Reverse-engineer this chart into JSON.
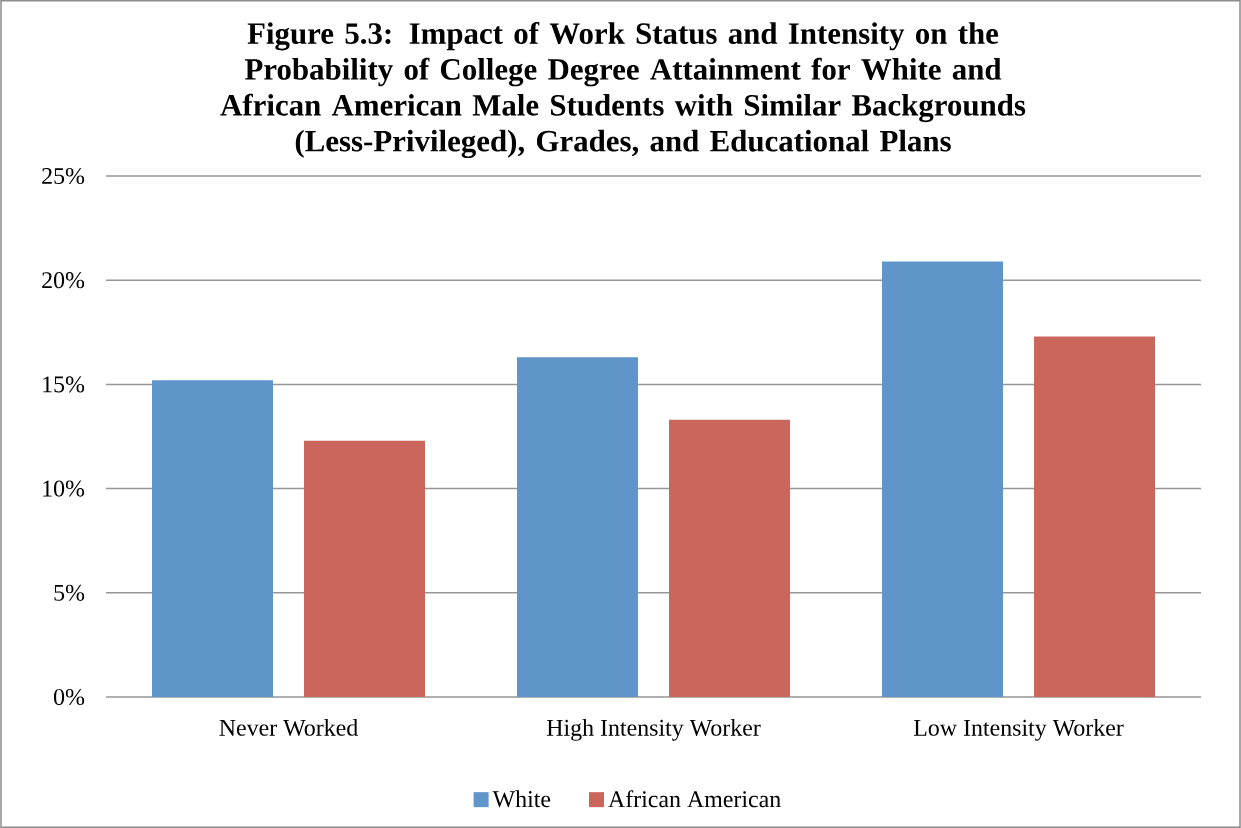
{
  "chart_data": {
    "type": "bar",
    "title": "Figure 5.3: Impact of Work Status and Intensity on the Probability of College Degree Attainment for White and African American Male Students with Similar Backgrounds (Less-Privileged), Grades, and Educational Plans",
    "categories": [
      "Never Worked",
      "High Intensity Worker",
      "Low Intensity Worker"
    ],
    "series": [
      {
        "name": "White",
        "color": "#5f95c9",
        "values": [
          15.2,
          16.3,
          20.9
        ]
      },
      {
        "name": "African American",
        "color": "#cb665d",
        "values": [
          12.3,
          13.3,
          17.3
        ]
      }
    ],
    "ylim": [
      0,
      25
    ],
    "yticks": [
      {
        "value": 0,
        "label": "0%"
      },
      {
        "value": 5,
        "label": "5%"
      },
      {
        "value": 10,
        "label": "10%"
      },
      {
        "value": 15,
        "label": "15%"
      },
      {
        "value": 20,
        "label": "20%"
      },
      {
        "value": 25,
        "label": "25%"
      }
    ],
    "grid": "y",
    "legend": "bottom"
  }
}
